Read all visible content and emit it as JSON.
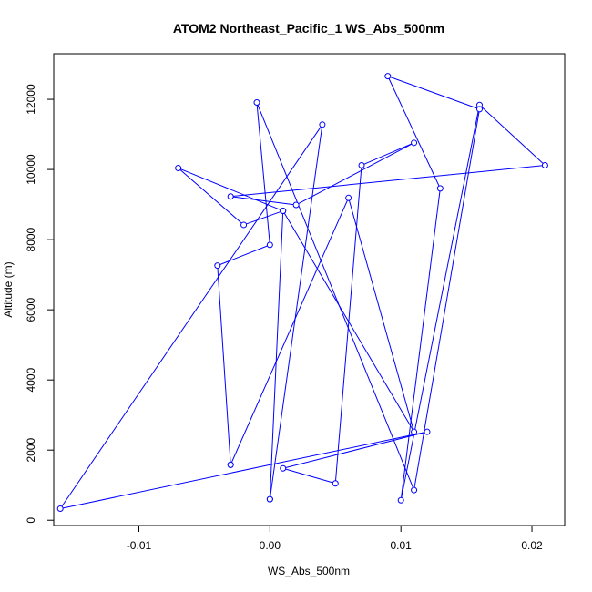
{
  "chart_data": {
    "type": "line",
    "title": "ATOM2 Northeast_Pacific_1 WS_Abs_500nm",
    "xlabel": "WS_Abs_500nm",
    "ylabel": "Altitude (m)",
    "xlim": [
      -0.0165,
      0.0225
    ],
    "ylim": [
      -150,
      13300
    ],
    "x_ticks": [
      -0.01,
      0.0,
      0.01,
      0.02
    ],
    "x_tick_labels": [
      "-0.01",
      "0.00",
      "0.01",
      "0.02"
    ],
    "y_ticks": [
      0,
      2000,
      4000,
      6000,
      8000,
      10000,
      12000
    ],
    "y_tick_labels": [
      "0",
      "2000",
      "4000",
      "6000",
      "8000",
      "10000",
      "12000"
    ],
    "grid": false,
    "legend": "none",
    "marker": "open-circle",
    "color": "#0000ff",
    "series": [
      {
        "x": [
          0.0,
          0.004,
          -0.016,
          0.012,
          0.001,
          0.005,
          0.007,
          0.011,
          0.002,
          -0.003,
          0.021,
          0.016,
          0.01,
          0.013,
          0.009,
          0.016,
          0.011,
          -0.001,
          0.0,
          -0.004,
          -0.003,
          -0.003,
          0.006,
          0.011,
          0.001,
          -0.002,
          -0.007,
          0.001,
          0.0
        ],
        "y": [
          600,
          11280,
          330,
          2520,
          1480,
          1050,
          10120,
          10760,
          8990,
          9230,
          10120,
          11840,
          570,
          9460,
          12660,
          11720,
          860,
          11910,
          7850,
          7260,
          1580,
          1580,
          9190,
          2520,
          8820,
          8420,
          10040,
          8820,
          600
        ]
      }
    ]
  }
}
